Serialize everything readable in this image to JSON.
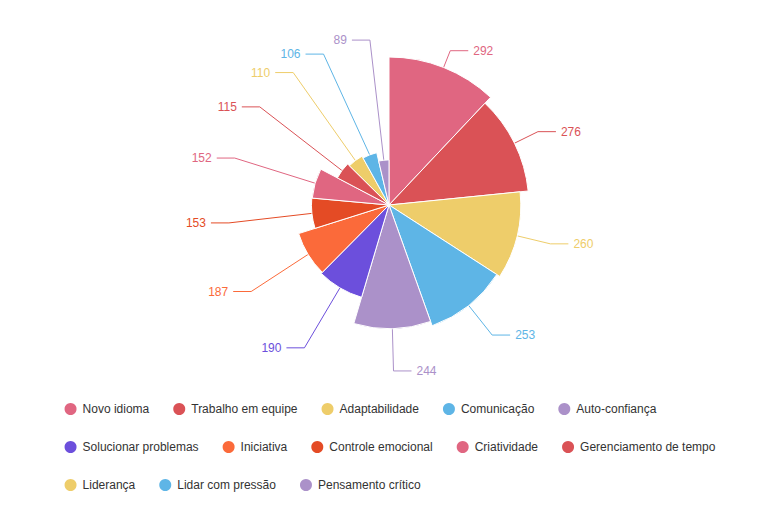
{
  "chart_data": {
    "type": "pie",
    "categories": [
      "Novo idioma",
      "Trabalho em equipe",
      "Adaptabilidade",
      "Comunicação",
      "Auto-confiança",
      "Solucionar problemas",
      "Iniciativa",
      "Controle emocional",
      "Criatividade",
      "Gerenciamento de tempo",
      "Liderança",
      "Lidar com pressão",
      "Pensamento crítico"
    ],
    "values": [
      292,
      276,
      260,
      253,
      244,
      190,
      187,
      153,
      152,
      115,
      110,
      106,
      89
    ],
    "colors": [
      "#e06681",
      "#da5256",
      "#eecd6a",
      "#5eb5e6",
      "#ab91c9",
      "#6c4fdc",
      "#fb6a3a",
      "#e44b25",
      "#e06681",
      "#da5256",
      "#eecd6a",
      "#5eb5e6",
      "#ab91c9"
    ],
    "data_labels": true,
    "legend": "bottom"
  }
}
